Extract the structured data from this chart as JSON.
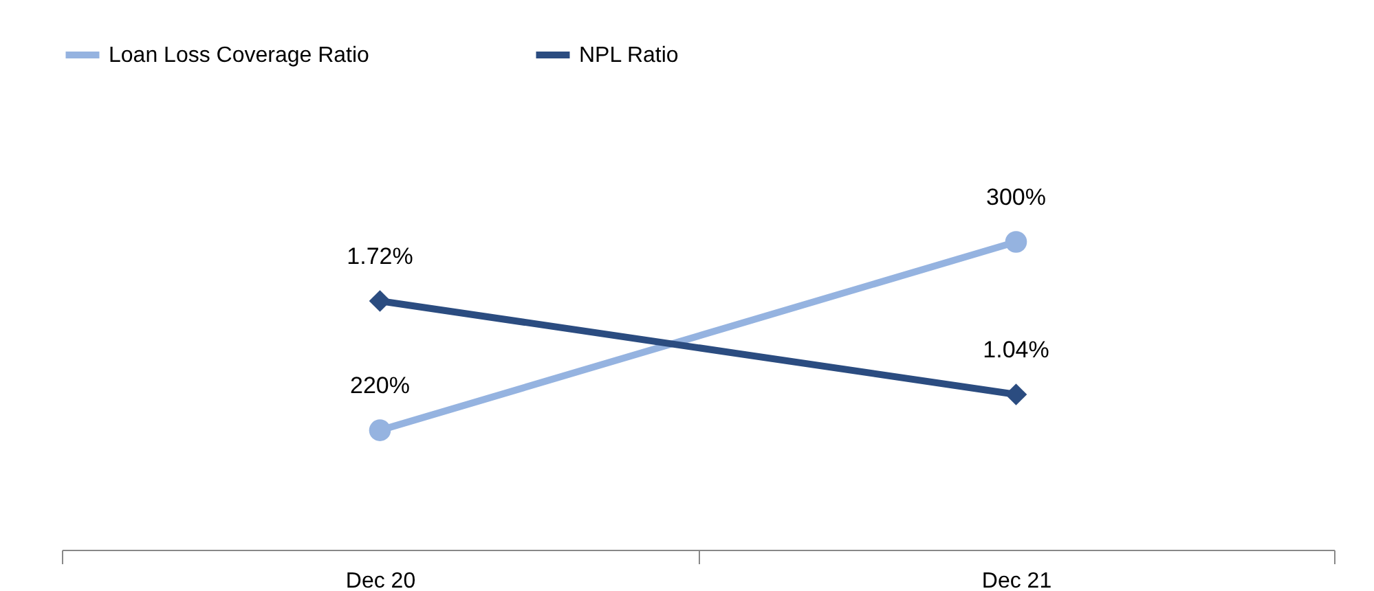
{
  "chart_data": {
    "type": "line",
    "categories": [
      "Dec 20",
      "Dec 21"
    ],
    "series": [
      {
        "name": "Loan Loss Coverage Ratio",
        "color": "#95b3e0",
        "values": [
          220,
          300
        ],
        "value_labels": [
          "220%",
          "300%"
        ],
        "marker": "circle"
      },
      {
        "name": "NPL Ratio",
        "color": "#2b4c80",
        "values": [
          1.72,
          1.04
        ],
        "value_labels": [
          "1.72%",
          "1.04%"
        ],
        "marker": "diamond",
        "axis": "y2"
      }
    ],
    "tick_labels": "x",
    "legend": "top"
  }
}
